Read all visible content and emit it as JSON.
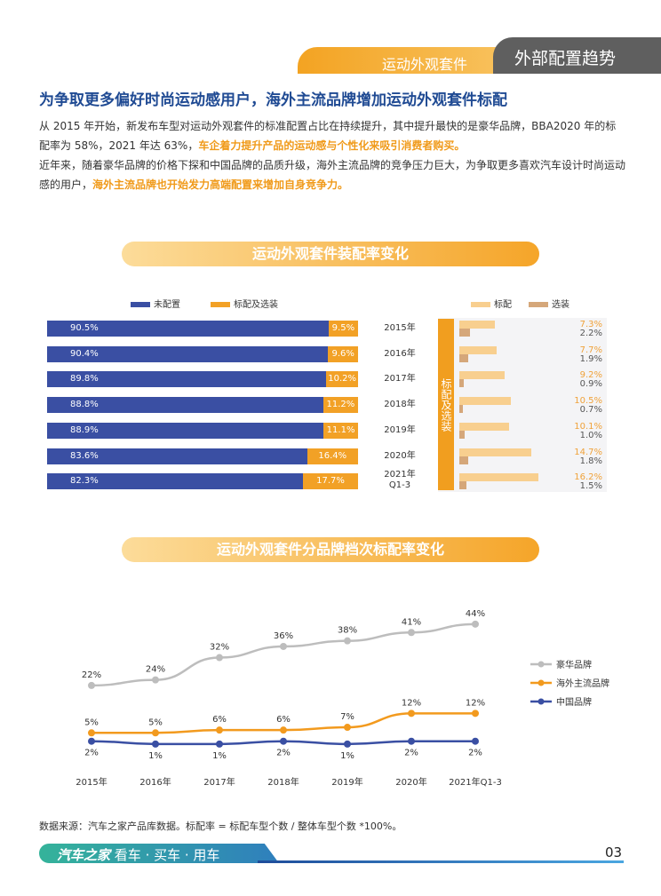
{
  "header": {
    "section_tab": "运动外观套件",
    "chapter_tab": "外部配置趋势"
  },
  "headline": "为争取更多偏好时尚运动感用户，海外主流品牌增加运动外观套件标配",
  "paragraphs": [
    {
      "text": "从 2015 年开始，新发布车型对运动外观套件的标准配置占比在持续提升，其中提升最快的是豪华品牌，BBA2020 年的标配率为 58%，2021 年达 63%，",
      "highlight": "车企着力提升产品的运动感与个性化来吸引消费者购买。"
    },
    {
      "text": "近年来，随着豪华品牌的价格下探和中国品牌的品质升级，海外主流品牌的竞争压力巨大，为争取更多喜欢汽车设计时尚运动感的用户，",
      "highlight": "海外主流品牌也开始发力高端配置来增加自身竞争力。"
    }
  ],
  "chart_data": [
    {
      "type": "bar",
      "stacked": true,
      "orientation": "horizontal",
      "title": "运动外观套件装配率变化",
      "categories": [
        "2015年",
        "2016年",
        "2017年",
        "2018年",
        "2019年",
        "2020年",
        "2021年 Q1-3"
      ],
      "legend": "top",
      "series": [
        {
          "name": "未配置",
          "color": "#3a4fa3",
          "values": [
            90.5,
            90.4,
            89.8,
            88.8,
            88.9,
            83.6,
            82.3
          ]
        },
        {
          "name": "标配及选装",
          "color": "#f2a126",
          "values": [
            9.5,
            9.6,
            10.2,
            11.2,
            11.1,
            16.4,
            17.7
          ]
        }
      ]
    },
    {
      "type": "bar",
      "orientation": "horizontal",
      "panel_label": "标配及选装",
      "categories": [
        "2015年",
        "2016年",
        "2017年",
        "2018年",
        "2019年",
        "2020年",
        "2021年 Q1-3"
      ],
      "legend": "top",
      "series": [
        {
          "name": "标配",
          "color": "#f8cf8f",
          "values": [
            7.3,
            7.7,
            9.2,
            10.5,
            10.1,
            14.7,
            16.2
          ]
        },
        {
          "name": "选装",
          "color": "#d5a77a",
          "values": [
            2.2,
            1.9,
            0.9,
            0.7,
            1.0,
            1.8,
            1.5
          ]
        }
      ]
    },
    {
      "type": "line",
      "title": "运动外观套件分品牌档次标配率变化",
      "categories": [
        "2015年",
        "2016年",
        "2017年",
        "2018年",
        "2019年",
        "2020年",
        "2021年Q1-3"
      ],
      "legend": "right",
      "series": [
        {
          "name": "豪华品牌",
          "color": "#bdbdbd",
          "values": [
            22,
            24,
            32,
            36,
            38,
            41,
            44
          ]
        },
        {
          "name": "海外主流品牌",
          "color": "#f29a1e",
          "values": [
            5,
            5,
            6,
            6,
            7,
            12,
            12
          ]
        },
        {
          "name": "中国品牌",
          "color": "#3a4fa3",
          "values": [
            2,
            1,
            1,
            2,
            1,
            2,
            2
          ]
        }
      ]
    }
  ],
  "source": "数据来源：汽车之家产品库数据。标配率 = 标配车型个数 / 整体车型个数 *100%。",
  "footer": {
    "brand": "汽车之家",
    "slogan": "看车 · 买车 · 用车",
    "page": "03"
  }
}
